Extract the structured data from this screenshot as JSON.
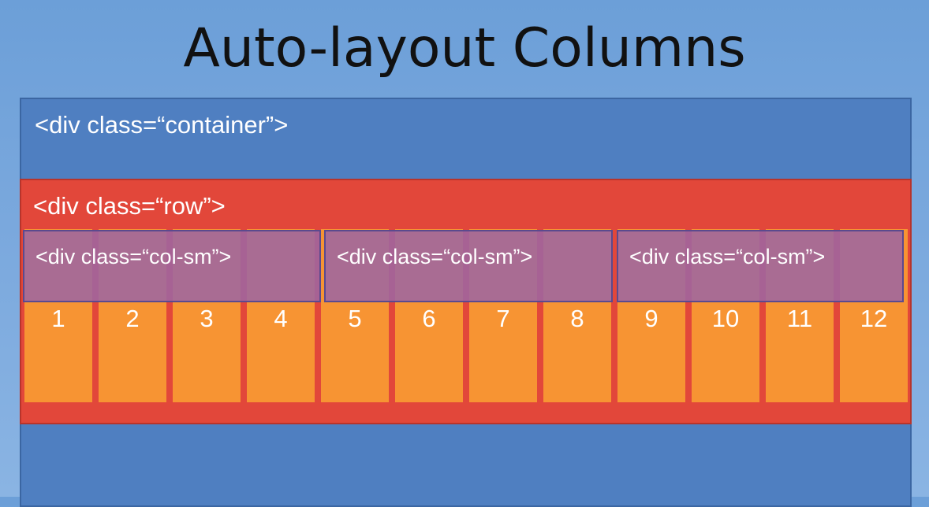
{
  "title": "Auto-layout Columns",
  "container": {
    "label": "<div class=“container”>"
  },
  "row": {
    "label": "<div class=“row”>"
  },
  "col_sm": [
    {
      "label": "<div class=“col-sm”>"
    },
    {
      "label": "<div class=“col-sm”>"
    },
    {
      "label": "<div class=“col-sm”>"
    }
  ],
  "grid_columns": [
    "1",
    "2",
    "3",
    "4",
    "5",
    "6",
    "7",
    "8",
    "9",
    "10",
    "11",
    "12"
  ],
  "colors": {
    "container": "#4f7fc1",
    "row": "#e2473a",
    "grid_column": "#f79433",
    "col_sm": "#9e66a0"
  }
}
